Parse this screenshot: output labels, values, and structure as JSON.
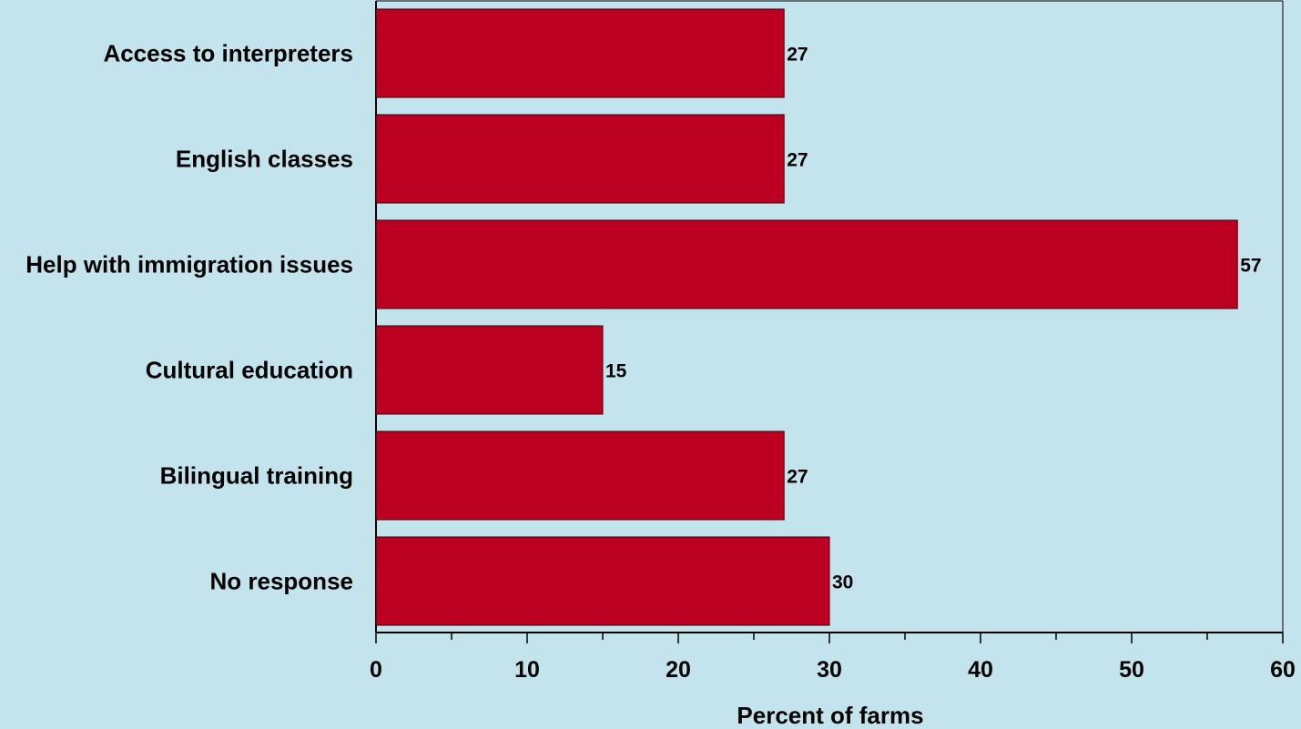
{
  "chart_data": {
    "type": "bar",
    "orientation": "horizontal",
    "categories": [
      "Access to interpreters",
      "English classes",
      "Help with immigration issues",
      "Cultural education",
      "Bilingual training",
      "No response"
    ],
    "values": [
      27,
      27,
      57,
      15,
      27,
      30
    ],
    "title": "",
    "xlabel": "Percent of farms",
    "ylabel": "",
    "xlim": [
      0,
      60
    ],
    "xticks": [
      0,
      10,
      20,
      30,
      40,
      50,
      60
    ],
    "grid": false,
    "data_labels": true,
    "colors": {
      "background": "#c3e4ec",
      "bar_fill": "#bb0022",
      "bar_stroke": "#3a0008",
      "axis": "#000000",
      "text": "#000000"
    }
  }
}
